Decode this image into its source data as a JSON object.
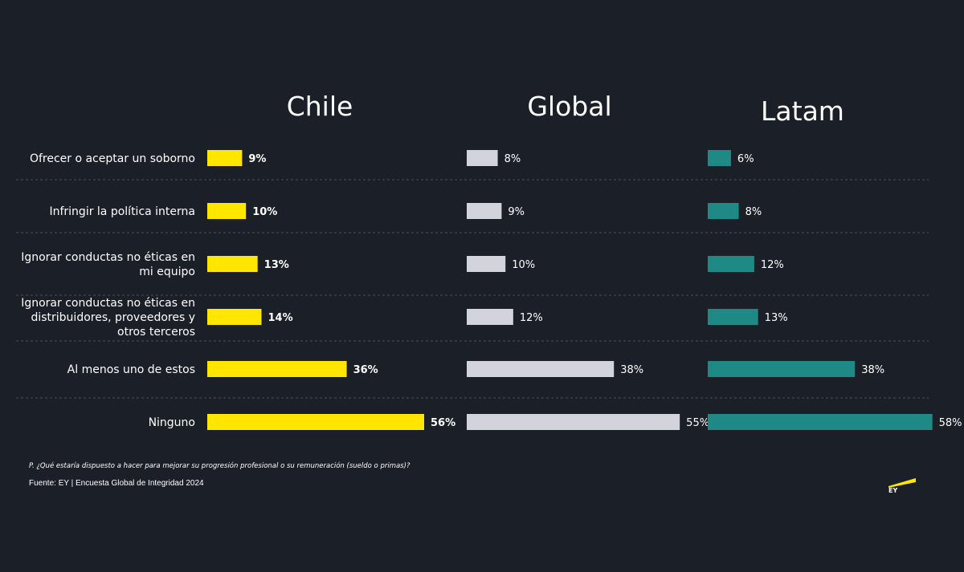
{
  "chart_data": {
    "type": "bar",
    "orientation": "horizontal",
    "categories": [
      "Ofrecer o aceptar un soborno",
      "Infringir la política interna",
      "Ignorar conductas no éticas en mi equipo",
      "Ignorar conductas no éticas en distribuidores, proveedores y otros terceros",
      "Al menos uno de estos",
      "Ninguno"
    ],
    "category_lines": [
      [
        "Ofrecer o aceptar un soborno"
      ],
      [
        "Infringir la política interna"
      ],
      [
        "Ignorar conductas no éticas en",
        "mi equipo"
      ],
      [
        "Ignorar conductas no éticas en",
        "distribuidores, proveedores y",
        "otros terceros"
      ],
      [
        "Al menos uno de estos"
      ],
      [
        "Ninguno"
      ]
    ],
    "series": [
      {
        "name": "Chile",
        "values": [
          9,
          10,
          13,
          14,
          36,
          56
        ],
        "color": "#ffe600"
      },
      {
        "name": "Global",
        "values": [
          8,
          9,
          10,
          12,
          38,
          55
        ],
        "color": "#d3d3dc"
      },
      {
        "name": "Latam",
        "values": [
          6,
          8,
          12,
          13,
          38,
          58
        ],
        "color": "#1f8a85"
      }
    ],
    "value_suffix": "%",
    "xlim": [
      0,
      60
    ],
    "grid": false
  },
  "footer": {
    "question": "P. ¿Qué estaría dispuesto a hacer para mejorar su progresión profesional o su remuneración (sueldo o primas)?",
    "source": "Fuente: EY | Encuesta Global de Integridad 2024"
  },
  "colors": {
    "background": "#1b1f27",
    "divider": "#4a4f59",
    "text": "#ffffff",
    "logo": "#ffe600"
  },
  "logo_icon": "ey-logo-icon"
}
